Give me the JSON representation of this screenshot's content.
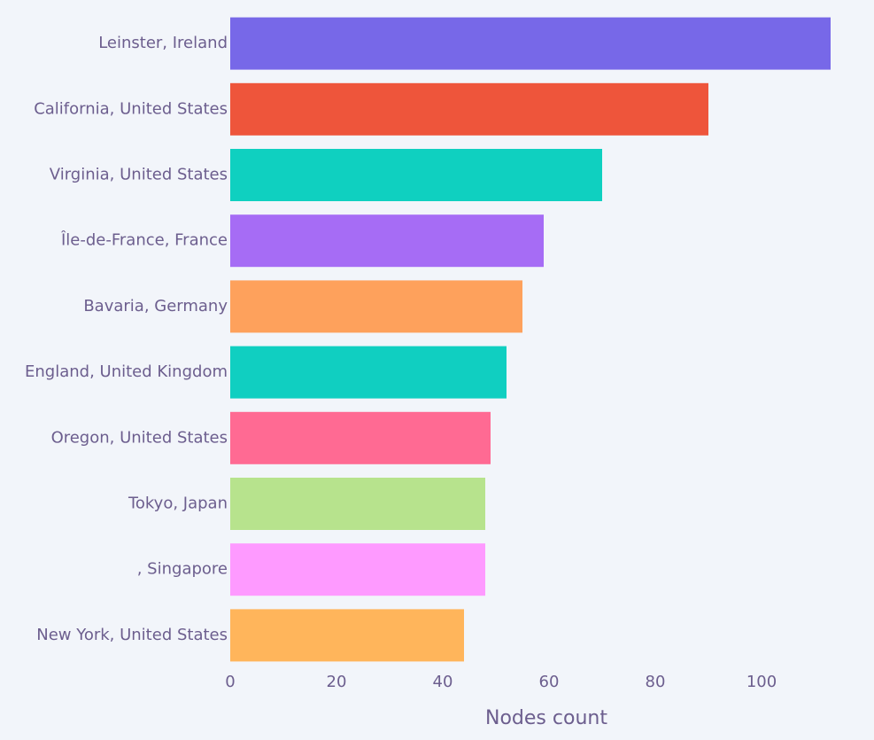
{
  "chart_data": {
    "type": "bar",
    "orientation": "horizontal",
    "categories": [
      "Leinster, Ireland",
      "California, United States",
      "Virginia, United States",
      "Île-de-France, France",
      "Bavaria, Germany",
      "England, United Kingdom",
      "Oregon, United States",
      "Tokyo, Japan",
      ", Singapore",
      "New York, United States"
    ],
    "values": [
      113,
      90,
      70,
      59,
      55,
      52,
      49,
      48,
      48,
      44
    ],
    "colors": [
      "#7768e8",
      "#ee553b",
      "#0fd0c0",
      "#a66cf5",
      "#fea15c",
      "#10cfc1",
      "#ff6a93",
      "#b7e38d",
      "#fe9aff",
      "#ffb55b"
    ],
    "xlabel": "Nodes count",
    "ylabel": "",
    "title": "",
    "xlim": [
      0,
      113
    ],
    "xticks": [
      0,
      20,
      40,
      60,
      80,
      100
    ],
    "grid": false,
    "background": "#f2f5fa",
    "text_color": "#6c5e8e"
  }
}
